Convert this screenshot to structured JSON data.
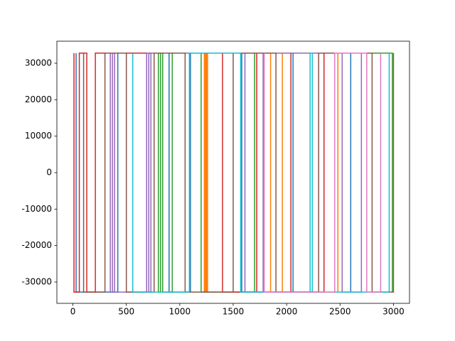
{
  "chart_data": {
    "type": "line",
    "xlim": [
      -150,
      3150
    ],
    "ylim": [
      -35850,
      36040
    ],
    "xticks": [
      0,
      500,
      1000,
      1500,
      2000,
      2500,
      3000
    ],
    "yticks": [
      -30000,
      -20000,
      -10000,
      0,
      10000,
      20000,
      30000
    ],
    "series": [
      {
        "color": "#1f77b4",
        "x": [
          30,
          30,
          420,
          420,
          900,
          900,
          1100,
          1100,
          1580,
          1580,
          2060,
          2060,
          2600,
          2600
        ],
        "values": [
          32767,
          -32768,
          -32768,
          32767,
          32767,
          -32768,
          -32768,
          32767,
          32767,
          -32768,
          -32768,
          32767,
          32767,
          -32768
        ]
      },
      {
        "color": "#ff7f0e",
        "x": [
          1230,
          1230,
          1240,
          1240,
          1250,
          1250,
          1260,
          1260,
          1850,
          1850,
          1960,
          1960,
          2480,
          2480
        ],
        "values": [
          32767,
          -32768,
          -32768,
          32767,
          32767,
          -32768,
          -32768,
          32767,
          32767,
          -32768,
          -32768,
          32767,
          32767,
          -32768
        ]
      },
      {
        "color": "#2ca02c",
        "x": [
          800,
          800,
          820,
          820,
          840,
          840,
          930,
          930,
          1200,
          1200,
          1700,
          1700,
          2990,
          2990
        ],
        "values": [
          32767,
          -32768,
          -32768,
          32767,
          32767,
          -32768,
          -32768,
          32767,
          32767,
          -32768,
          -32768,
          32767,
          32767,
          -32768
        ]
      },
      {
        "color": "#d62728",
        "x": [
          10,
          10,
          60,
          60,
          130,
          130,
          210,
          210,
          1400,
          1400,
          1720,
          1720,
          2040,
          2040,
          2350,
          2350
        ],
        "values": [
          32767,
          -32768,
          -32768,
          32767,
          32767,
          -32768,
          -32768,
          32767,
          32767,
          -32768,
          -32768,
          32767,
          32767,
          -32768,
          -32768,
          32767
        ]
      },
      {
        "color": "#9467bd",
        "x": [
          350,
          350,
          370,
          370,
          390,
          390,
          690,
          690,
          710,
          710,
          730,
          730,
          1610,
          1610,
          1780,
          1780,
          2520,
          2520,
          2700,
          2700
        ],
        "values": [
          32767,
          -32768,
          -32768,
          32767,
          32767,
          -32768,
          -32768,
          32767,
          32767,
          -32768,
          -32768,
          32767,
          32767,
          -32768,
          -32768,
          32767,
          32767,
          -32768,
          -32768,
          32767
        ]
      },
      {
        "color": "#8c564b",
        "x": [
          100,
          100,
          300,
          300,
          500,
          500,
          760,
          760,
          1050,
          1050,
          1500,
          1500,
          1900,
          1900,
          2300,
          2300,
          2800,
          2800,
          3000,
          3000
        ],
        "values": [
          32767,
          -32768,
          -32768,
          32767,
          32767,
          -32768,
          -32768,
          32767,
          32767,
          -32768,
          -32768,
          32767,
          32767,
          -32768,
          -32768,
          32767,
          32767,
          -32768,
          -32768,
          32767
        ]
      },
      {
        "color": "#17becf",
        "x": [
          560,
          560,
          1090,
          1090,
          1570,
          1570,
          2220,
          2220,
          2240,
          2240,
          2960,
          2960
        ],
        "values": [
          32767,
          -32768,
          -32768,
          32767,
          32767,
          -32768,
          -32768,
          32767,
          32767,
          -32768,
          -32768,
          32767
        ]
      },
      {
        "color": "#e377c2",
        "x": [
          1790,
          1790,
          2450,
          2450,
          2750,
          2750,
          2880,
          2880
        ],
        "values": [
          32767,
          -32768,
          -32768,
          32767,
          32767,
          -32768,
          -32768,
          32767
        ]
      }
    ]
  }
}
